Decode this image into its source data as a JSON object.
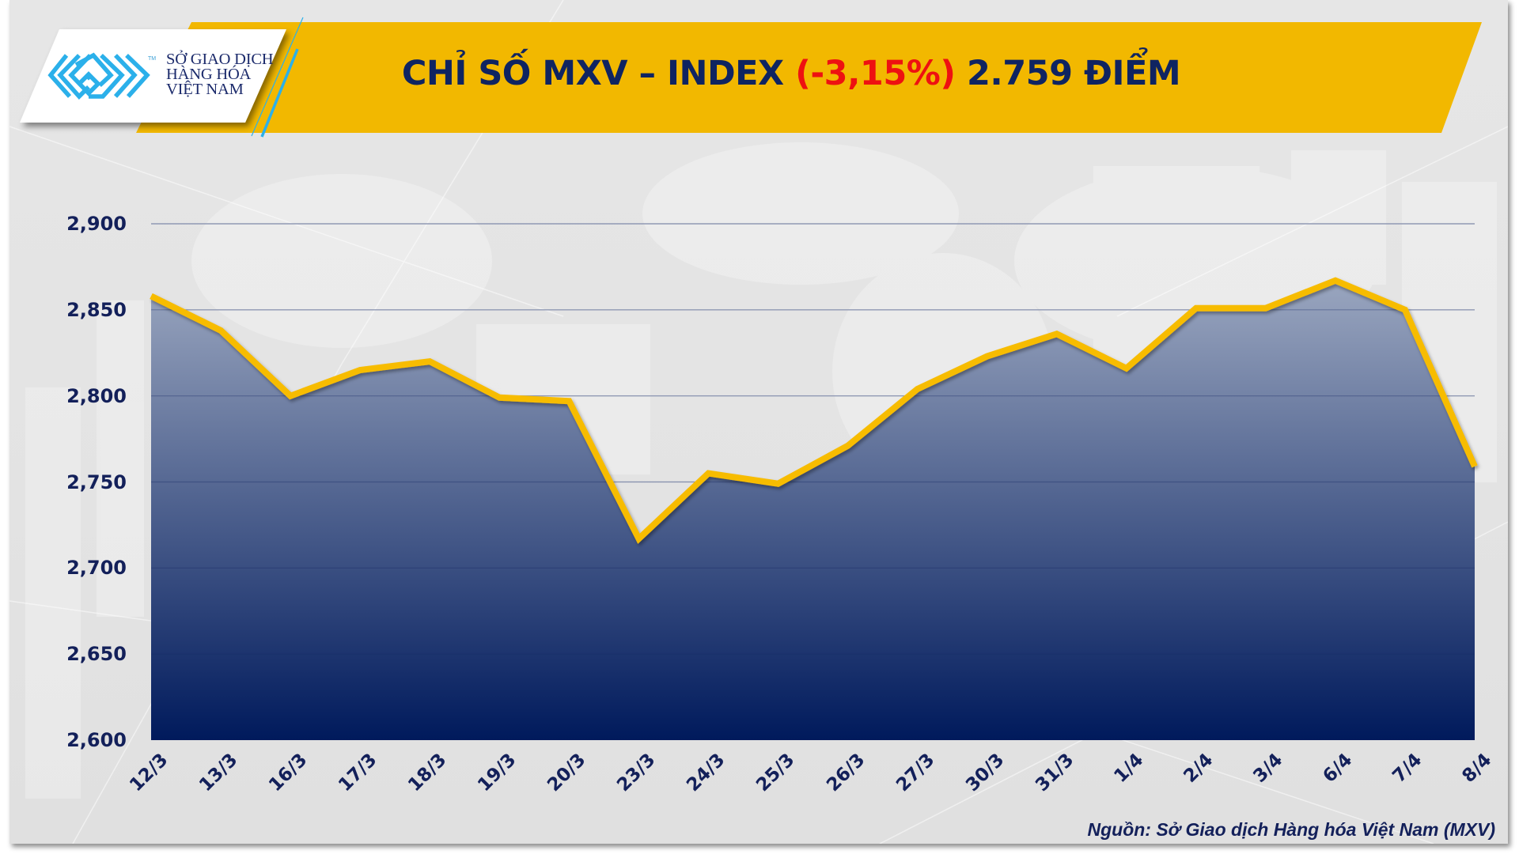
{
  "header": {
    "logo": {
      "icon": "mxv-maze-logo-icon",
      "trademark": "TM",
      "lines": [
        "SỞ GIAO DỊCH",
        "HÀNG HÓA",
        "VIỆT NAM"
      ]
    },
    "title_prefix": "CHỈ SỐ MXV – INDEX ",
    "title_change": "(-3,15%)",
    "title_suffix": " 2.759 ĐIỂM"
  },
  "colors": {
    "banner": "#f2b800",
    "title_text": "#0f2461",
    "title_negative": "#ee1111",
    "line": "#f7bc00",
    "area_top": "#9aa6bf",
    "area_bottom": "#001a5c",
    "logo_blue": "#2bb0ea"
  },
  "source": "Nguồn: Sở Giao dịch Hàng hóa Việt Nam (MXV)",
  "chart_data": {
    "type": "area",
    "title": "CHỈ SỐ MXV – INDEX (-3,15%) 2.759 ĐIỂM",
    "xlabel": "",
    "ylabel": "",
    "categories": [
      "12/3",
      "13/3",
      "16/3",
      "17/3",
      "18/3",
      "19/3",
      "20/3",
      "23/3",
      "24/3",
      "25/3",
      "26/3",
      "27/3",
      "30/3",
      "31/3",
      "1/4",
      "2/4",
      "3/4",
      "6/4",
      "7/4",
      "8/4"
    ],
    "series": [
      {
        "name": "MXV-Index",
        "values": [
          2858,
          2838,
          2800,
          2815,
          2820,
          2799,
          2797,
          2717,
          2755,
          2749,
          2771,
          2804,
          2823,
          2836,
          2816,
          2851,
          2851,
          2867,
          2850,
          2759
        ]
      }
    ],
    "ylim": [
      2600,
      2900
    ],
    "yticks": [
      "2,600",
      "2,650",
      "2,700",
      "2,750",
      "2,800",
      "2,850",
      "2,900"
    ],
    "ytick_values": [
      2600,
      2650,
      2700,
      2750,
      2800,
      2850,
      2900
    ],
    "grid": true,
    "legend": "none",
    "source": "Nguồn: Sở Giao dịch Hàng hóa Việt Nam (MXV)"
  }
}
